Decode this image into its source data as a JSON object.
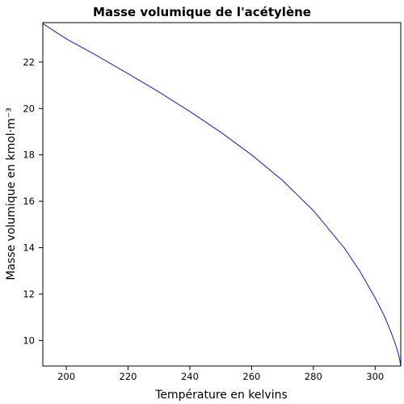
{
  "chart_data": {
    "type": "line",
    "title": "Masse volumique de l'acétylène",
    "xlabel": "Température en kelvins",
    "ylabel": "Masse volumique en kmol·m⁻³",
    "xlim": [
      192.4,
      308.3
    ],
    "ylim": [
      8.9,
      23.7
    ],
    "xticks": [
      200,
      220,
      240,
      260,
      280,
      300
    ],
    "yticks": [
      10,
      12,
      14,
      16,
      18,
      20,
      22
    ],
    "grid": false,
    "legend": "none",
    "series": [
      {
        "color": "#1a1aa6",
        "x": [
          192.4,
          200,
          210,
          220,
          230,
          240,
          250,
          260,
          270,
          280,
          290,
          295,
          300,
          303,
          305,
          306,
          307,
          307.5,
          308,
          308.3
        ],
        "y": [
          23.66,
          23.0,
          22.27,
          21.5,
          20.71,
          19.87,
          18.98,
          18.0,
          16.9,
          15.6,
          13.99,
          13.0,
          11.84,
          11.05,
          10.41,
          10.05,
          9.67,
          9.44,
          9.14,
          8.9
        ]
      }
    ]
  }
}
